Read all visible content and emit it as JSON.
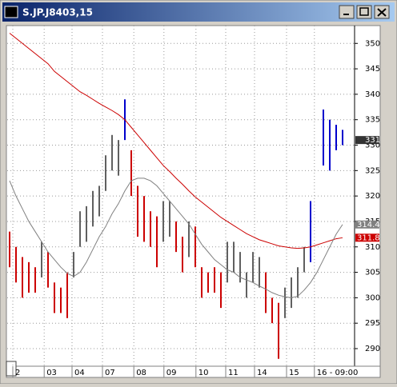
{
  "window": {
    "title": "S.JP.J8403,15"
  },
  "chart_data": {
    "type": "price-bars",
    "ylim": [
      286.7,
      353.5
    ],
    "yticks": [
      290,
      295,
      300,
      305,
      310,
      315,
      320,
      325,
      330,
      335,
      340,
      345,
      350
    ],
    "xticks": [
      {
        "value": 0.5,
        "label": "2"
      },
      {
        "value": 5.4,
        "label": "03"
      },
      {
        "value": 9.75,
        "label": "04"
      },
      {
        "value": 14.5,
        "label": "07"
      },
      {
        "value": 19.4,
        "label": "08"
      },
      {
        "value": 24.1,
        "label": "09"
      },
      {
        "value": 29.1,
        "label": "10"
      },
      {
        "value": 33.75,
        "label": "11"
      },
      {
        "value": 38.25,
        "label": "14"
      },
      {
        "value": 43.25,
        "label": "15"
      },
      {
        "value": 47.6,
        "label": "16 - 09:00"
      }
    ],
    "grid": true,
    "segments": [
      {
        "color": "#cc0000",
        "high": [
          313,
          310,
          308,
          307,
          306
        ],
        "low": [
          306,
          303,
          300,
          301,
          301
        ]
      },
      {
        "color": "#606060",
        "high": [
          311
        ],
        "low": [
          304
        ]
      },
      {
        "color": "#cc0000",
        "high": [
          309,
          303,
          302,
          305
        ],
        "low": [
          302,
          297,
          297,
          296
        ]
      },
      {
        "color": "#606060",
        "high": [
          309,
          317,
          318,
          321,
          322,
          328,
          332,
          331
        ],
        "low": [
          304,
          310,
          311,
          314,
          316,
          321,
          325,
          324
        ]
      },
      {
        "color": "#0000cc",
        "high": [
          339
        ],
        "low": [
          331
        ]
      },
      {
        "color": "#cc0000",
        "high": [
          329,
          322,
          320,
          317,
          316
        ],
        "low": [
          320,
          312,
          311,
          310,
          306
        ]
      },
      {
        "color": "#606060",
        "high": [
          319,
          319
        ],
        "low": [
          311,
          312
        ]
      },
      {
        "color": "#cc0000",
        "high": [
          315,
          312
        ],
        "low": [
          309,
          305
        ]
      },
      {
        "color": "#606060",
        "high": [
          315
        ],
        "low": [
          308
        ]
      },
      {
        "color": "#cc0000",
        "high": [
          314,
          306,
          305,
          306,
          305
        ],
        "low": [
          306,
          300,
          301,
          301,
          298
        ]
      },
      {
        "color": "#606060",
        "high": [
          311,
          311,
          309,
          305,
          309,
          308
        ],
        "low": [
          303,
          305,
          303,
          300,
          303,
          302
        ]
      },
      {
        "color": "#cc0000",
        "high": [
          305,
          300,
          299
        ],
        "low": [
          297,
          295,
          288
        ]
      },
      {
        "color": "#606060",
        "high": [
          302,
          304,
          306,
          310
        ],
        "low": [
          296,
          298,
          300,
          305
        ]
      },
      {
        "color": "#0000cc",
        "high": [
          319,
          null,
          337,
          335,
          334,
          333
        ],
        "low": [
          307,
          null,
          326,
          325,
          329,
          330
        ]
      }
    ],
    "lines": [
      {
        "color": "#cc0000",
        "values": [
          352,
          351,
          350,
          349,
          348,
          347,
          346,
          344.5,
          343.5,
          342.5,
          341.5,
          340.5,
          339.8,
          339,
          338.2,
          337.5,
          336.8,
          336,
          335,
          333.5,
          332,
          330.5,
          329,
          327.5,
          326,
          324.8,
          323.5,
          322.3,
          321,
          319.8,
          318.8,
          317.8,
          316.8,
          315.8,
          315,
          314.2,
          313.4,
          312.6,
          312,
          311.4,
          311,
          310.6,
          310.2,
          310,
          309.8,
          309.7,
          309.8,
          310,
          310.4,
          310.8,
          311.2,
          311.6,
          311.8
        ]
      },
      {
        "color": "#808080",
        "values": [
          323,
          320,
          317.5,
          315,
          313,
          311,
          309,
          307.5,
          306,
          304.8,
          304.2,
          305,
          307,
          309.5,
          312,
          314,
          316.5,
          318.5,
          321,
          323,
          323.5,
          323.5,
          323,
          322,
          320.5,
          319,
          317.5,
          316,
          314.5,
          312.5,
          310.5,
          309,
          307.5,
          306.5,
          305.5,
          305,
          304,
          303.5,
          303,
          302.3,
          301.7,
          301,
          300.5,
          300.2,
          300,
          300.3,
          301.5,
          303,
          305,
          307.5,
          310,
          312.5,
          314.4
        ]
      }
    ],
    "last_price": 331
  }
}
